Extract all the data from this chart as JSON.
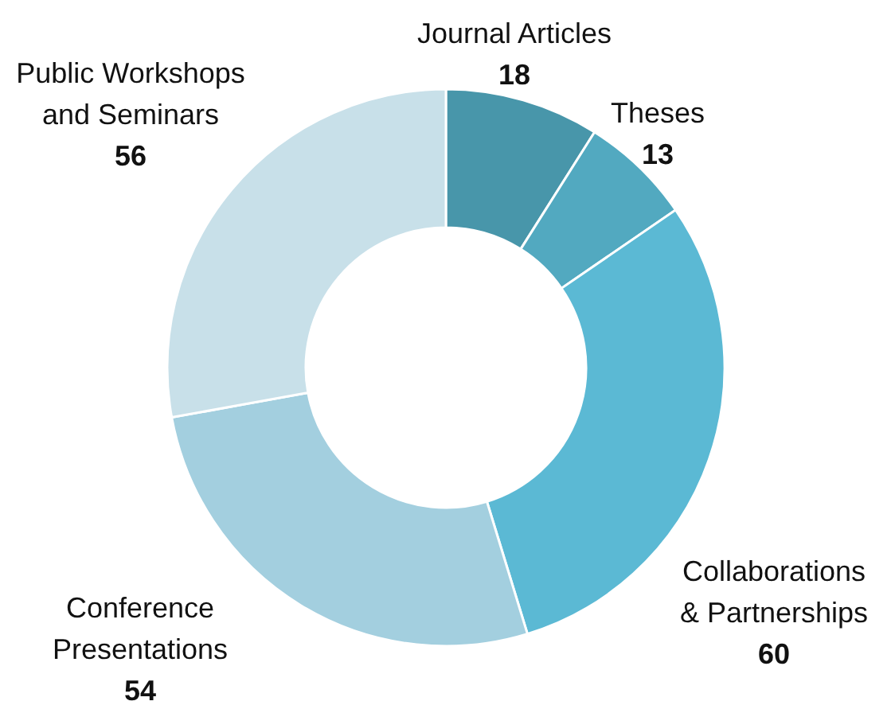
{
  "chart_data": {
    "type": "donut",
    "categories": [
      "Journal Articles",
      "Theses",
      "Collaborations & Partnerships",
      "Conference Presentations",
      "Public Workshops and Seminars"
    ],
    "values": [
      18,
      13,
      60,
      54,
      56
    ],
    "colors": [
      "#4896aa",
      "#52a9c0",
      "#5bb9d4",
      "#a3cfdf",
      "#c8e0e9"
    ],
    "data_labels": true
  }
}
